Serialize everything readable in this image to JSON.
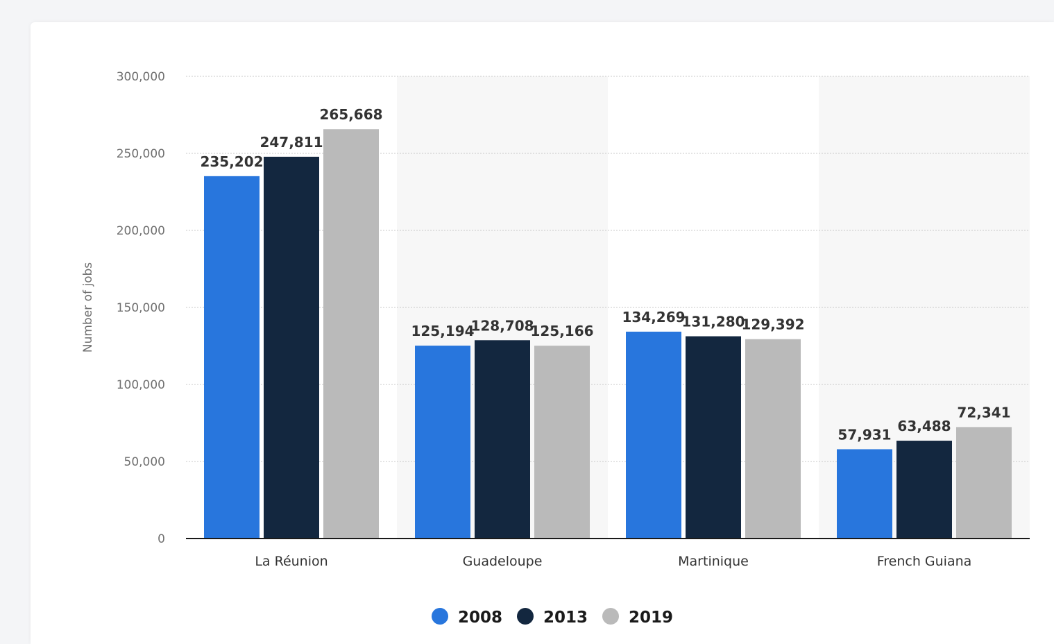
{
  "chart_data": {
    "type": "bar",
    "categories": [
      "La Réunion",
      "Guadeloupe",
      "Martinique",
      "French Guiana"
    ],
    "series": [
      {
        "name": "2008",
        "values": [
          235202,
          125194,
          134269,
          57931
        ],
        "color": "#2876dd"
      },
      {
        "name": "2013",
        "values": [
          247811,
          128708,
          131280,
          63488
        ],
        "color": "#13273f"
      },
      {
        "name": "2019",
        "values": [
          265668,
          125166,
          129392,
          72341
        ],
        "color": "#bababa"
      }
    ],
    "ylabel": "Number of jobs",
    "ylim": [
      0,
      300000
    ],
    "yticks": [
      0,
      50000,
      100000,
      150000,
      200000,
      250000,
      300000
    ],
    "grid": true,
    "legend": "bottom-center"
  }
}
